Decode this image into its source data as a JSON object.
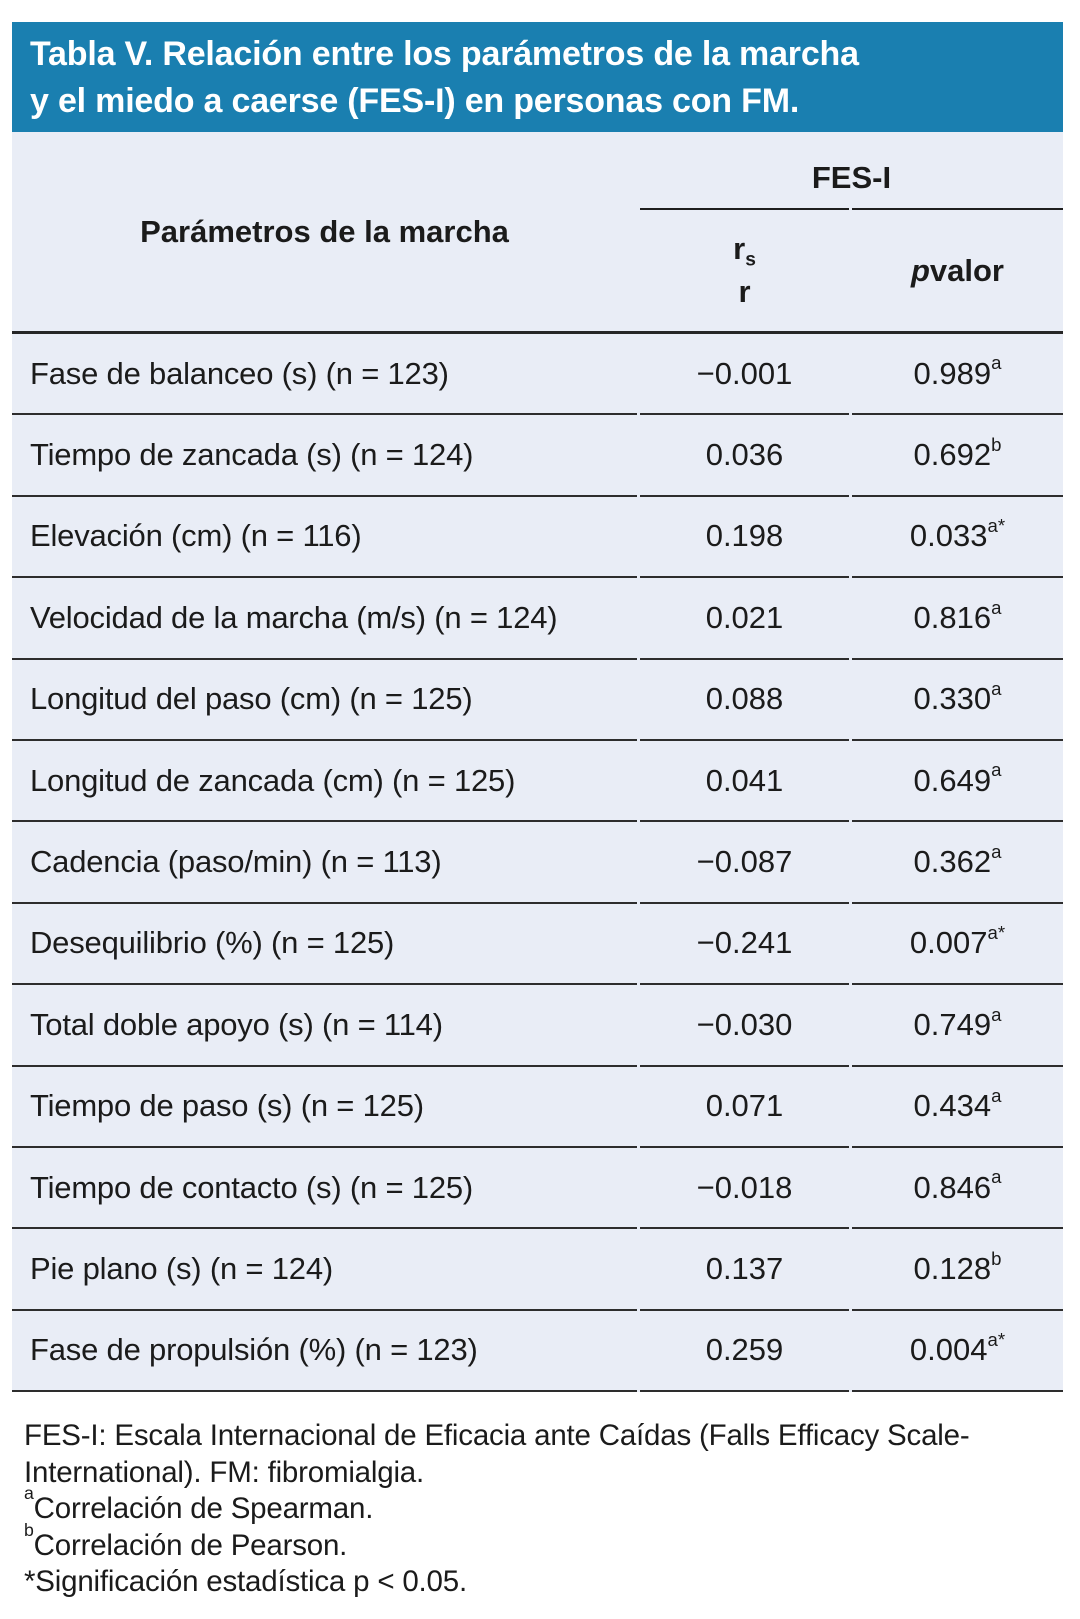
{
  "title": "Tabla V. Relación entre los parámetros de la marcha\ny el miedo a caerse (FES-I) en personas con FM.",
  "colors": {
    "band_teal": "#1a7fb0",
    "table_bg": "#e9edf6",
    "text": "#1b1b1b",
    "rule": "#2d2d2d"
  },
  "table": {
    "param_header": "Parámetros de la marcha",
    "group_header": "FES-I",
    "stat_header": {
      "r_main": "r",
      "r_sub": "s",
      "r_second": "r"
    },
    "p_header": {
      "italic": "p",
      "rest": " valor"
    },
    "rows": [
      {
        "param": "Fase de balanceo (s) (n = 123)",
        "r": "−0.001",
        "p": "0.989",
        "sup": "a"
      },
      {
        "param": "Tiempo de zancada (s) (n = 124)",
        "r": "0.036",
        "p": "0.692",
        "sup": "b"
      },
      {
        "param": "Elevación (cm) (n = 116)",
        "r": "0.198",
        "p": "0.033",
        "sup": "a*"
      },
      {
        "param": "Velocidad de la marcha (m/s) (n = 124)",
        "r": "0.021",
        "p": "0.816",
        "sup": "a"
      },
      {
        "param": "Longitud del paso (cm) (n = 125)",
        "r": "0.088",
        "p": "0.330",
        "sup": "a"
      },
      {
        "param": "Longitud de zancada (cm) (n = 125)",
        "r": "0.041",
        "p": "0.649",
        "sup": "a"
      },
      {
        "param": "Cadencia (paso/min) (n = 113)",
        "r": "−0.087",
        "p": "0.362",
        "sup": "a"
      },
      {
        "param": "Desequilibrio (%) (n = 125)",
        "r": "−0.241",
        "p": "0.007",
        "sup": "a*"
      },
      {
        "param": "Total doble apoyo (s) (n = 114)",
        "r": "−0.030",
        "p": "0.749",
        "sup": "a"
      },
      {
        "param": "Tiempo de paso (s) (n = 125)",
        "r": "0.071",
        "p": "0.434",
        "sup": "a"
      },
      {
        "param": "Tiempo de contacto (s) (n = 125)",
        "r": "−0.018",
        "p": "0.846",
        "sup": "a"
      },
      {
        "param": "Pie plano (s) (n = 124)",
        "r": "0.137",
        "p": "0.128",
        "sup": "b"
      },
      {
        "param": "Fase de propulsión (%) (n = 123)",
        "r": "0.259",
        "p": "0.004",
        "sup": "a*"
      }
    ]
  },
  "footnotes": {
    "abbrev": "FES-I: Escala Internacional de Eficacia ante Caídas (Falls Efficacy Scale-\nInternational). FM: fibromialgia.",
    "fn_a_sup": "a",
    "fn_a_text": "Correlación de Spearman.",
    "fn_b_sup": "b",
    "fn_b_text": "Correlación de Pearson.",
    "fn_star": "*Significación estadística p < 0.05."
  }
}
